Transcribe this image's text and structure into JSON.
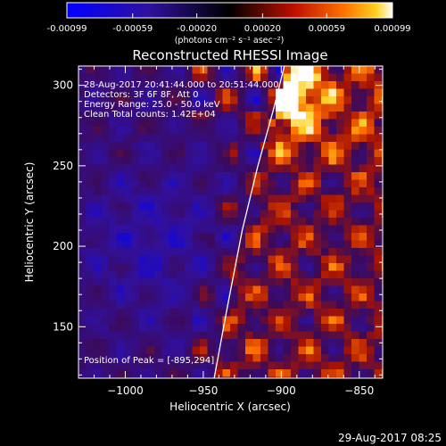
{
  "chart_data": {
    "type": "heatmap",
    "title": "Reconstructed RHESSI Image",
    "xlabel": "Heliocentric X (arcsec)",
    "ylabel": "Heliocentric Y (arcsec)",
    "xlim": [
      -1030,
      -835
    ],
    "ylim": [
      118,
      312
    ],
    "xticks": [
      -1000,
      -950,
      -900,
      -850
    ],
    "yticks": [
      150,
      200,
      250,
      300
    ],
    "colorbar": {
      "range": [
        -0.00099,
        0.00099
      ],
      "ticks": [
        "-0.00099",
        "-0.00059",
        "-0.00020",
        "0.00020",
        "0.00059",
        "0.00099"
      ],
      "tick_values": [
        -0.00099,
        -0.00059,
        -0.0002,
        0.0002,
        0.00059,
        0.00099
      ],
      "unit_label": "(photons cm⁻² s⁻¹ asec⁻²)"
    },
    "peak": {
      "x": -895,
      "y": 294
    },
    "limb_curve": [
      [
        -943,
        118
      ],
      [
        -935,
        160
      ],
      [
        -925,
        210
      ],
      [
        -915,
        250
      ],
      [
        -905,
        285
      ],
      [
        -898,
        312
      ]
    ],
    "annotations": {
      "time": "28-Aug-2017 20:41:44.000 to 20:51:44.000",
      "detectors": "Detectors: 3F 6F 8F, Att 0",
      "energy": "Energy Range: 25.0 - 50.0 keV",
      "clean": "Clean    Total counts: 1.42E+04",
      "peak": "Position of Peak = [-895,294]"
    },
    "footer_timestamp": "29-Aug-2017 08:25"
  }
}
